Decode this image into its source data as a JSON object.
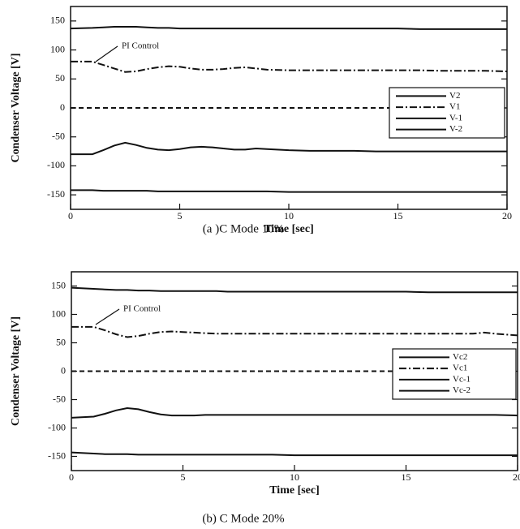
{
  "chart_data": [
    {
      "type": "line",
      "caption": "(a )C Mode 10%",
      "xlabel": "Time [sec]",
      "ylabel": "Condenser Voltage [V]",
      "annotation": "PI Control",
      "xlim": [
        0,
        20
      ],
      "xticks": [
        0,
        5,
        10,
        15,
        20
      ],
      "ylim": [
        -175,
        175
      ],
      "yticks": [
        150,
        100,
        50,
        0,
        -50,
        -100,
        -150
      ],
      "legend": "center right",
      "x": [
        0,
        1,
        1.5,
        2,
        2.5,
        3,
        3.5,
        4,
        4.5,
        5,
        5.5,
        6,
        6.5,
        7,
        7.5,
        8,
        8.5,
        9,
        10,
        11,
        12,
        13,
        14,
        15,
        16,
        17,
        18,
        18.5,
        19,
        20
      ],
      "series": [
        {
          "name": "V2",
          "color": "#111111",
          "style": "solid",
          "values": [
            137,
            138,
            139,
            140,
            140,
            140,
            139,
            138,
            138,
            137,
            137,
            137,
            137,
            137,
            137,
            137,
            137,
            137,
            137,
            137,
            137,
            137,
            137,
            137,
            136,
            136,
            136,
            136,
            136,
            136
          ]
        },
        {
          "name": "V1",
          "color": "#111111",
          "style": "dashdot",
          "values": [
            80,
            80,
            74,
            68,
            62,
            63,
            67,
            70,
            72,
            71,
            68,
            66,
            66,
            67,
            69,
            70,
            68,
            66,
            65,
            65,
            65,
            65,
            65,
            65,
            65,
            64,
            64,
            64,
            64,
            63
          ]
        },
        {
          "color": "#111111",
          "style": "dashed",
          "values": [
            0,
            0,
            0,
            0,
            0,
            0,
            0,
            0,
            0,
            0,
            0,
            0,
            0,
            0,
            0,
            0,
            0,
            0,
            0,
            0,
            0,
            0,
            0,
            0,
            0,
            0,
            0,
            0,
            0,
            0
          ]
        },
        {
          "name": "V-1",
          "color": "#111111",
          "style": "solid",
          "values": [
            -80,
            -80,
            -73,
            -65,
            -60,
            -64,
            -69,
            -72,
            -73,
            -71,
            -68,
            -67,
            -68,
            -70,
            -72,
            -72,
            -70,
            -71,
            -73,
            -74,
            -74,
            -74,
            -75,
            -75,
            -75,
            -75,
            -75,
            -75,
            -75,
            -75
          ]
        },
        {
          "name": "V-2",
          "color": "#111111",
          "style": "solid",
          "values": [
            -142,
            -142,
            -143,
            -143,
            -143,
            -143,
            -143,
            -144,
            -144,
            -144,
            -144,
            -144,
            -144,
            -144,
            -144,
            -144,
            -144,
            -144,
            -145,
            -145,
            -145,
            -145,
            -145,
            -145,
            -145,
            -145,
            -145,
            -145,
            -145,
            -145
          ]
        }
      ]
    },
    {
      "type": "line",
      "caption": "(b) C Mode 20%",
      "xlabel": "Time [sec]",
      "ylabel": "Condenser Voltage [V]",
      "annotation": "PI Control",
      "xlim": [
        0,
        20
      ],
      "xticks": [
        0,
        5,
        10,
        15,
        20
      ],
      "ylim": [
        -175,
        175
      ],
      "yticks": [
        150,
        100,
        50,
        0,
        -50,
        -100,
        -150
      ],
      "legend": "center right",
      "x": [
        0,
        1,
        1.5,
        2,
        2.5,
        3,
        3.5,
        4,
        4.5,
        5,
        5.5,
        6,
        6.5,
        7,
        7.5,
        8,
        8.5,
        9,
        10,
        11,
        12,
        13,
        14,
        15,
        16,
        17,
        18,
        18.5,
        19,
        20
      ],
      "series": [
        {
          "name": "Vc2",
          "color": "#111111",
          "style": "solid",
          "values": [
            147,
            145,
            144,
            143,
            143,
            142,
            142,
            141,
            141,
            141,
            141,
            141,
            141,
            140,
            140,
            140,
            140,
            140,
            140,
            140,
            140,
            140,
            140,
            140,
            139,
            139,
            139,
            139,
            139,
            139
          ]
        },
        {
          "name": "Vc1",
          "color": "#111111",
          "style": "dashdot",
          "values": [
            78,
            78,
            72,
            65,
            60,
            62,
            66,
            69,
            70,
            69,
            68,
            67,
            66,
            66,
            66,
            66,
            66,
            66,
            66,
            66,
            66,
            66,
            66,
            66,
            66,
            66,
            66,
            68,
            66,
            63
          ]
        },
        {
          "color": "#111111",
          "style": "dashed",
          "values": [
            0,
            0,
            0,
            0,
            0,
            0,
            0,
            0,
            0,
            0,
            0,
            0,
            0,
            0,
            0,
            0,
            0,
            0,
            0,
            0,
            0,
            0,
            0,
            0,
            0,
            0,
            0,
            0,
            0,
            0
          ]
        },
        {
          "name": "Vc-1",
          "color": "#111111",
          "style": "solid",
          "values": [
            -82,
            -80,
            -75,
            -69,
            -65,
            -67,
            -72,
            -76,
            -78,
            -78,
            -78,
            -77,
            -77,
            -77,
            -77,
            -77,
            -77,
            -77,
            -77,
            -77,
            -77,
            -77,
            -77,
            -77,
            -77,
            -77,
            -77,
            -77,
            -77,
            -78
          ]
        },
        {
          "name": "Vc-2",
          "color": "#111111",
          "style": "solid",
          "values": [
            -143,
            -145,
            -146,
            -146,
            -146,
            -147,
            -147,
            -147,
            -147,
            -147,
            -147,
            -147,
            -147,
            -147,
            -147,
            -147,
            -147,
            -147,
            -148,
            -148,
            -148,
            -148,
            -148,
            -148,
            -148,
            -148,
            -148,
            -148,
            -148,
            -148
          ]
        }
      ]
    }
  ]
}
